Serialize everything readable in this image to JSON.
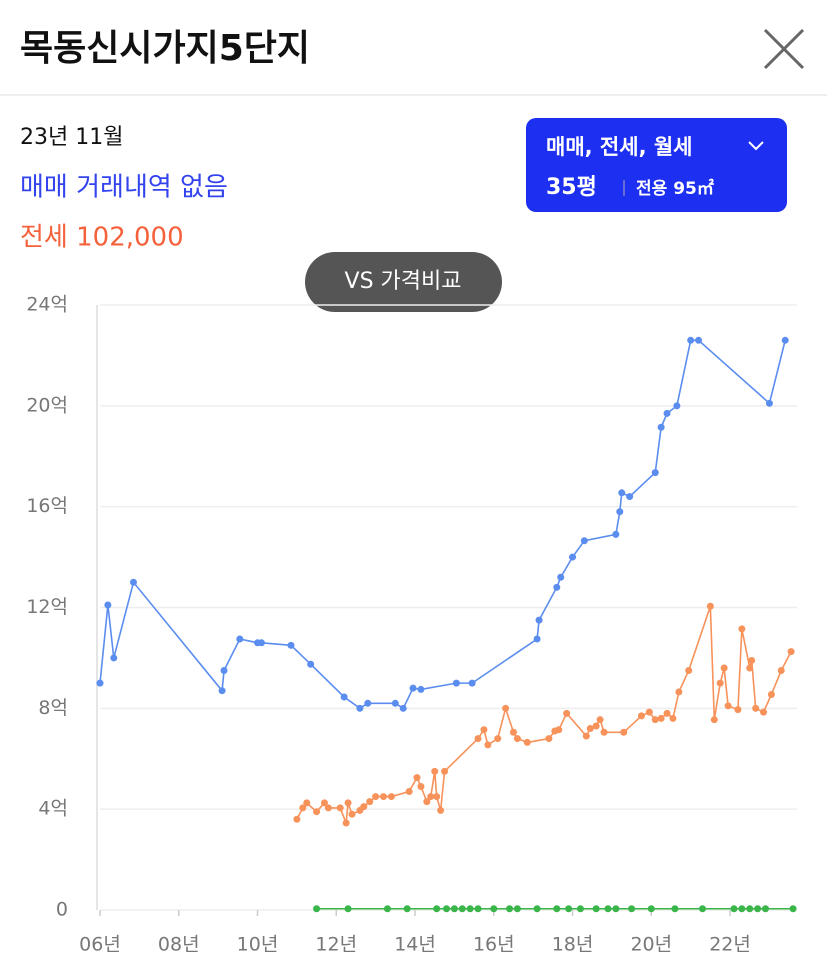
{
  "header": {
    "title": "목동신시가지5단지"
  },
  "info": {
    "date": "23년 11월",
    "sale": "매매 거래내역 없음",
    "jeonse": "전세 102,000"
  },
  "filter": {
    "types": "매매, 전세, 월세",
    "size": "35평",
    "area": "전용 95㎡"
  },
  "compare_button": "VS 가격비교",
  "chart_data": {
    "type": "line",
    "xlim": [
      2006,
      2023.7
    ],
    "xticks": [
      {
        "value": 2006,
        "label": "06년"
      },
      {
        "value": 2008,
        "label": "08년"
      },
      {
        "value": 2010,
        "label": "10년"
      },
      {
        "value": 2012,
        "label": "12년"
      },
      {
        "value": 2014,
        "label": "14년"
      },
      {
        "value": 2016,
        "label": "16년"
      },
      {
        "value": 2018,
        "label": "18년"
      },
      {
        "value": 2020,
        "label": "20년"
      },
      {
        "value": 2022,
        "label": "22년"
      }
    ],
    "ylim": [
      0,
      24
    ],
    "yticks": [
      0,
      {
        "value": 4,
        "label": "4억"
      },
      {
        "value": 8,
        "label": "8억"
      },
      {
        "value": 12,
        "label": "12억"
      },
      {
        "value": 16,
        "label": "16억"
      },
      {
        "value": 20,
        "label": "20억"
      },
      {
        "value": 24,
        "label": "24억"
      }
    ],
    "grid": true,
    "series": [
      {
        "color": "#5b8def",
        "x": [
          2006.0,
          2006.2,
          2006.35,
          2006.85,
          2009.1,
          2009.15,
          2009.55,
          2010.0,
          2010.1,
          2010.85,
          2011.35,
          2012.2,
          2012.6,
          2012.8,
          2013.5,
          2013.7,
          2013.95,
          2014.15,
          2015.05,
          2015.45,
          2017.1,
          2017.15,
          2017.6,
          2017.7,
          2018.0,
          2018.3,
          2019.1,
          2019.2,
          2019.25,
          2019.45,
          2020.1,
          2020.25,
          2020.4,
          2020.65,
          2021.0,
          2021.2,
          2023.0,
          2023.4
        ],
        "values": [
          9.0,
          12.1,
          10.0,
          13.0,
          8.7,
          9.5,
          10.75,
          10.6,
          10.6,
          10.5,
          9.75,
          8.45,
          8.0,
          8.2,
          8.2,
          8.0,
          8.8,
          8.75,
          9.0,
          9.0,
          10.75,
          11.5,
          12.8,
          13.2,
          14.0,
          14.65,
          14.9,
          15.8,
          16.55,
          16.4,
          17.35,
          19.15,
          19.7,
          20.0,
          22.6,
          22.6,
          20.1,
          22.6
        ]
      },
      {
        "color": "#f7925a",
        "x": [
          2011.0,
          2011.15,
          2011.25,
          2011.5,
          2011.7,
          2011.8,
          2012.1,
          2012.25,
          2012.3,
          2012.4,
          2012.6,
          2012.7,
          2012.85,
          2013.0,
          2013.2,
          2013.4,
          2013.85,
          2014.05,
          2014.15,
          2014.3,
          2014.4,
          2014.5,
          2014.55,
          2014.65,
          2014.75,
          2015.6,
          2015.75,
          2015.85,
          2016.1,
          2016.3,
          2016.5,
          2016.6,
          2016.85,
          2017.4,
          2017.55,
          2017.65,
          2017.85,
          2018.35,
          2018.45,
          2018.6,
          2018.7,
          2018.8,
          2019.3,
          2019.75,
          2019.95,
          2020.1,
          2020.25,
          2020.4,
          2020.55,
          2020.7,
          2020.95,
          2021.5,
          2021.6,
          2021.75,
          2021.85,
          2021.95,
          2022.2,
          2022.3,
          2022.5,
          2022.55,
          2022.65,
          2022.85,
          2023.05,
          2023.3,
          2023.55
        ],
        "values": [
          3.6,
          4.05,
          4.25,
          3.9,
          4.25,
          4.05,
          4.05,
          3.45,
          4.25,
          3.8,
          3.95,
          4.1,
          4.3,
          4.5,
          4.5,
          4.5,
          4.7,
          5.25,
          4.9,
          4.3,
          4.5,
          5.5,
          4.5,
          3.95,
          5.5,
          6.8,
          7.15,
          6.55,
          6.8,
          8.0,
          7.05,
          6.8,
          6.65,
          6.8,
          7.1,
          7.15,
          7.8,
          6.9,
          7.2,
          7.3,
          7.55,
          7.05,
          7.05,
          7.7,
          7.85,
          7.55,
          7.6,
          7.8,
          7.6,
          8.65,
          9.5,
          12.05,
          7.55,
          9.0,
          9.6,
          8.1,
          7.95,
          11.15,
          9.6,
          9.9,
          8.0,
          7.85,
          8.55,
          9.5,
          10.25
        ]
      },
      {
        "color": "#39b54a",
        "x": [
          2011.5,
          2012.3,
          2013.3,
          2013.8,
          2014.55,
          2014.8,
          2015.0,
          2015.2,
          2015.4,
          2015.6,
          2016.0,
          2016.4,
          2016.6,
          2017.1,
          2017.6,
          2017.9,
          2018.2,
          2018.6,
          2018.9,
          2019.1,
          2019.5,
          2020.0,
          2020.6,
          2021.3,
          2022.1,
          2022.3,
          2022.5,
          2022.7,
          2022.9,
          2023.6
        ],
        "values": [
          0.05,
          0.05,
          0.05,
          0.05,
          0.05,
          0.05,
          0.05,
          0.05,
          0.05,
          0.05,
          0.05,
          0.05,
          0.05,
          0.05,
          0.05,
          0.05,
          0.05,
          0.05,
          0.05,
          0.05,
          0.05,
          0.05,
          0.05,
          0.05,
          0.05,
          0.05,
          0.05,
          0.05,
          0.05,
          0.05
        ]
      }
    ]
  }
}
